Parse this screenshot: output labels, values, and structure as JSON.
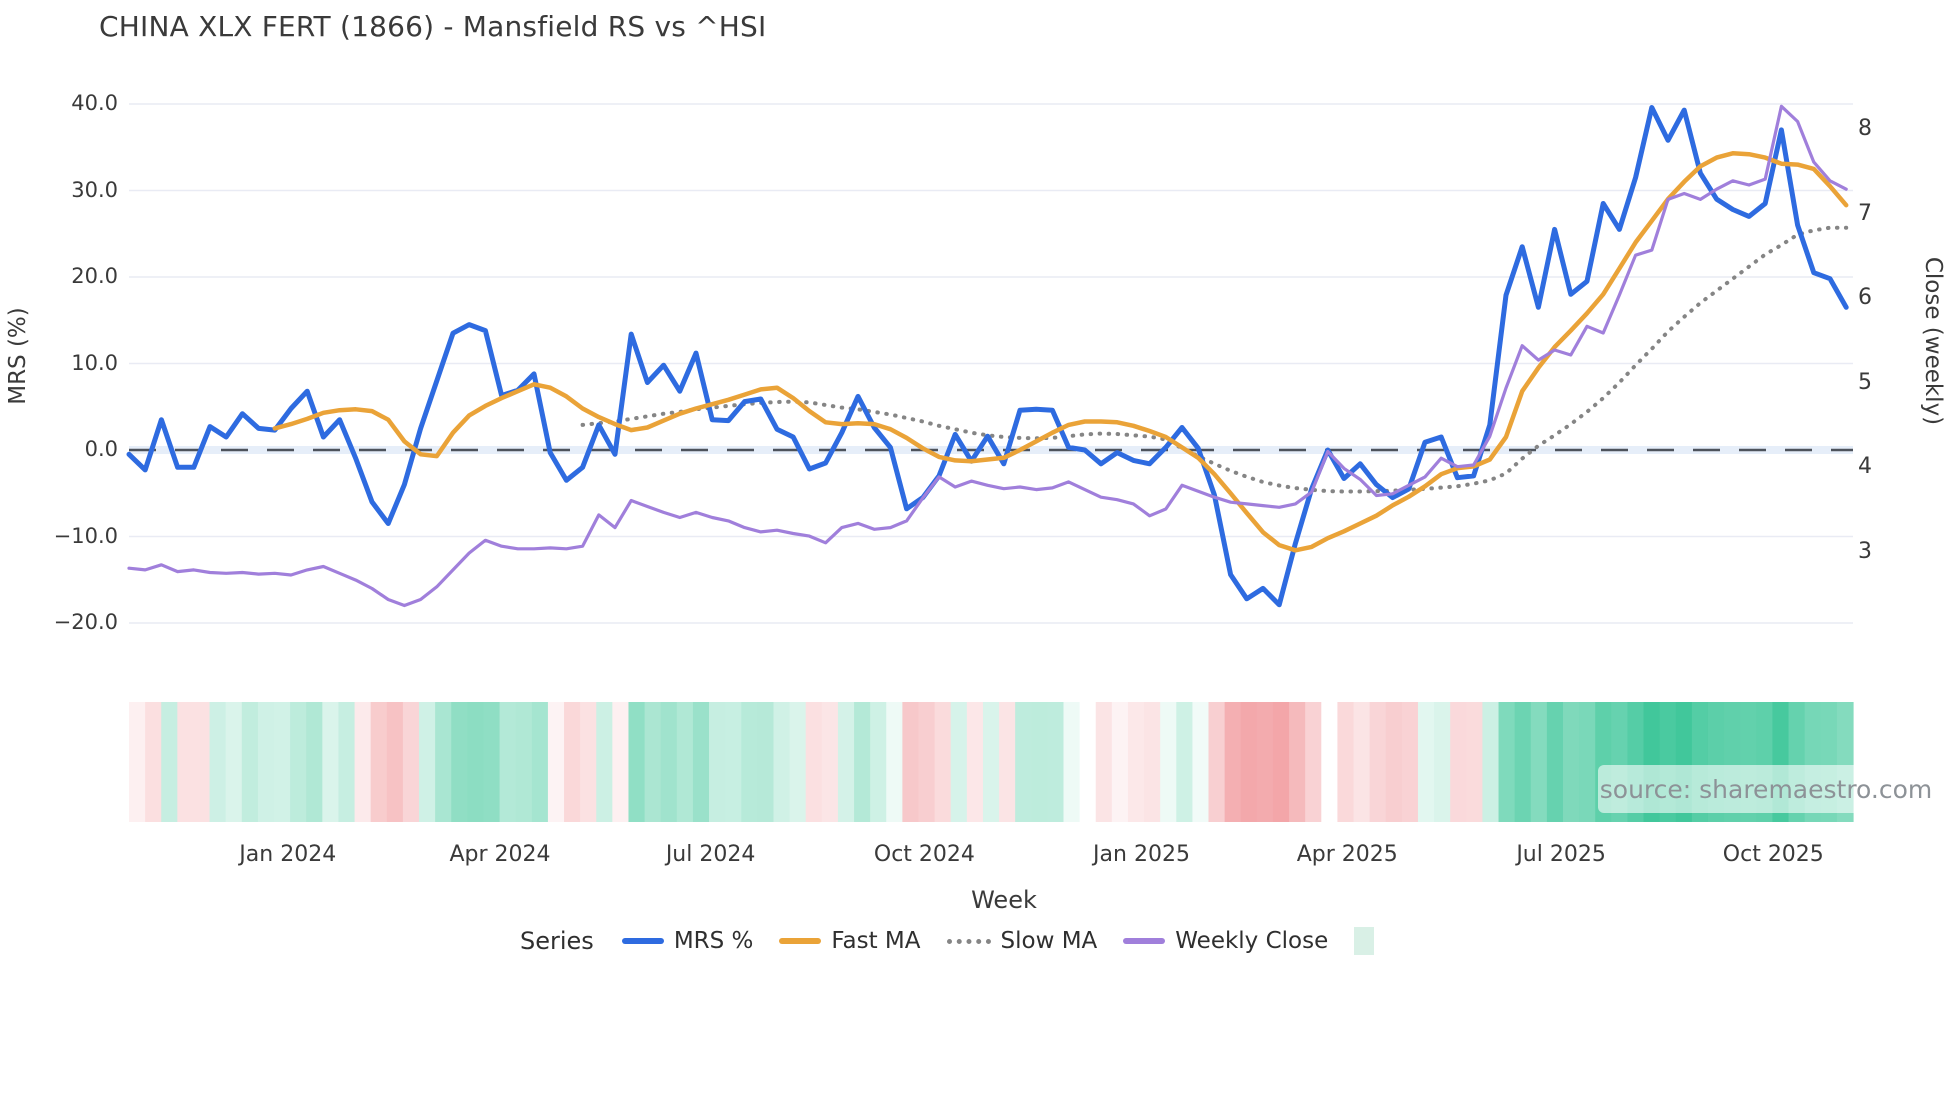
{
  "title": "CHINA XLX FERT (1866) - Mansfield RS vs ^HSI",
  "watermark": "source: sharemaestro.com",
  "axes": {
    "x_label": "Week",
    "y_left_label": "MRS (%)",
    "y_right_label": "Close (weekly)",
    "x_ticks": [
      {
        "label": "Jan 2024",
        "week": 9.8
      },
      {
        "label": "Apr 2024",
        "week": 22.9
      },
      {
        "label": "Jul 2024",
        "week": 35.9
      },
      {
        "label": "Oct 2024",
        "week": 49.1
      },
      {
        "label": "Jan 2025",
        "week": 62.5
      },
      {
        "label": "Apr 2025",
        "week": 75.2
      },
      {
        "label": "Jul 2025",
        "week": 88.4
      },
      {
        "label": "Oct 2025",
        "week": 101.5
      }
    ],
    "y_left_ticks": [
      {
        "label": "40.0",
        "value": 40
      },
      {
        "label": "30.0",
        "value": 30
      },
      {
        "label": "20.0",
        "value": 20
      },
      {
        "label": "10.0",
        "value": 10
      },
      {
        "label": "0.0",
        "value": 0
      },
      {
        "label": "−10.0",
        "value": -10
      },
      {
        "label": "−20.0",
        "value": -20
      }
    ],
    "y_right_ticks": [
      {
        "label": "8",
        "value": 8
      },
      {
        "label": "7",
        "value": 7
      },
      {
        "label": "6",
        "value": 6
      },
      {
        "label": "5",
        "value": 5
      },
      {
        "label": "4",
        "value": 4
      },
      {
        "label": "3",
        "value": 3
      }
    ]
  },
  "legend": {
    "title": "Series",
    "items": [
      {
        "label": "MRS %",
        "style": "solid",
        "color": "#2e6be0"
      },
      {
        "label": "Fast MA",
        "style": "solid",
        "color": "#eaa338"
      },
      {
        "label": "Slow MA",
        "style": "dotted",
        "color": "#858585"
      },
      {
        "label": "Weekly Close",
        "style": "solid",
        "color": "#a07fdb"
      },
      {
        "label": "",
        "style": "square",
        "color": "#d9f0e6"
      }
    ]
  },
  "colors": {
    "mrs_line": "#2e6be0",
    "fast_ma_line": "#eaa338",
    "slow_ma_line": "#858585",
    "weekly_close_line": "#a07fdb",
    "zero_dash": "#4d535c",
    "zero_band": "#dde8f7",
    "gridline": "#e9ebf4",
    "heat_green": "#10b981",
    "heat_red": "#e8595f",
    "legend_heat_swatch": "#d9f0e6"
  },
  "chart_data": {
    "type": "line",
    "title": "CHINA XLX FERT (1866) - Mansfield RS vs ^HSI",
    "xlabel": "Week",
    "ylabel_left": "MRS (%)",
    "ylabel_right": "Close (weekly)",
    "x_unit": "week_index",
    "n_points": 107,
    "x_range_weeks": [
      "late Oct 2023",
      "early Nov 2025"
    ],
    "y_left_range": [
      -24,
      42
    ],
    "y_right_range": [
      2.2,
      8.5
    ],
    "grid": "horizontal-only",
    "legend_position": "bottom",
    "zero_reference_line": 0,
    "series": [
      {
        "name": "MRS %",
        "axis": "left",
        "style": "solid",
        "color": "#2e6be0",
        "values": [
          -0.5,
          -2.3,
          3.5,
          -2,
          -2,
          2.7,
          1.5,
          4.2,
          2.5,
          2.3,
          4.8,
          6.8,
          1.5,
          3.5,
          -1,
          -6,
          -8.5,
          -4,
          2.5,
          8,
          13.5,
          14.5,
          13.8,
          6.3,
          6.9,
          8.8,
          -0.3,
          -3.5,
          -2,
          2.9,
          -0.5,
          13.4,
          7.8,
          9.8,
          6.8,
          11.2,
          3.5,
          3.4,
          5.6,
          5.9,
          2.4,
          1.5,
          -2.2,
          -1.5,
          2,
          6.2,
          2.6,
          0.3,
          -6.8,
          -5.5,
          -3,
          1.8,
          -1.3,
          1.6,
          -1.6,
          4.6,
          4.7,
          4.6,
          0.3,
          0,
          -1.6,
          -0.3,
          -1.2,
          -1.6,
          0.3,
          2.6,
          0.2,
          -5.2,
          -14.4,
          -17.2,
          -16,
          -17.9,
          -10.8,
          -4.5,
          0,
          -3.3,
          -1.6,
          -4,
          -5.5,
          -4.5,
          0.9,
          1.5,
          -3.2,
          -3,
          2.9,
          17.9,
          23.5,
          16.5,
          25.5,
          18,
          19.5,
          28.5,
          25.5,
          31.5,
          39.6,
          35.8,
          39.3,
          32,
          29,
          27.8,
          27,
          28.5,
          37,
          26,
          20.5,
          19.8,
          16.5
        ]
      },
      {
        "name": "Fast MA",
        "axis": "left",
        "style": "solid",
        "color": "#eaa338",
        "values": [
          null,
          null,
          null,
          null,
          null,
          null,
          null,
          null,
          null,
          2.5,
          3,
          3.6,
          4.3,
          4.6,
          4.7,
          4.5,
          3.5,
          1,
          -0.5,
          -0.7,
          2,
          4,
          5.1,
          6,
          6.8,
          7.6,
          7.2,
          6.2,
          4.8,
          3.8,
          3,
          2.3,
          2.6,
          3.4,
          4.2,
          4.8,
          5.3,
          5.8,
          6.4,
          7,
          7.2,
          6,
          4.5,
          3.2,
          3,
          3.1,
          3,
          2.4,
          1.4,
          0.2,
          -0.8,
          -1.2,
          -1.3,
          -1.1,
          -0.9,
          0,
          1,
          2,
          2.9,
          3.3,
          3.3,
          3.2,
          2.8,
          2.2,
          1.5,
          0.3,
          -0.9,
          -2.8,
          -5,
          -7.3,
          -9.5,
          -11,
          -11.6,
          -11.2,
          -10.2,
          -9.4,
          -8.5,
          -7.6,
          -6.4,
          -5.4,
          -4.2,
          -2.8,
          -2.1,
          -1.9,
          -1.1,
          1.5,
          6.8,
          9.5,
          11.9,
          13.8,
          15.8,
          18,
          21,
          24,
          26.5,
          29,
          31,
          32.8,
          33.8,
          34.3,
          34.2,
          33.8,
          33.1,
          33,
          32.5,
          30.5,
          28.3
        ]
      },
      {
        "name": "Slow MA",
        "axis": "left",
        "style": "dotted",
        "color": "#858585",
        "values": [
          null,
          null,
          null,
          null,
          null,
          null,
          null,
          null,
          null,
          null,
          null,
          null,
          null,
          null,
          null,
          null,
          null,
          null,
          null,
          null,
          null,
          null,
          null,
          null,
          null,
          null,
          null,
          null,
          2.9,
          3.1,
          3.3,
          3.6,
          3.9,
          4.2,
          4.4,
          4.7,
          4.9,
          5.1,
          5.3,
          5.45,
          5.55,
          5.6,
          5.5,
          5.2,
          4.9,
          4.7,
          4.4,
          4.1,
          3.7,
          3.3,
          2.8,
          2.4,
          2,
          1.7,
          1.5,
          1.4,
          1.35,
          1.4,
          1.6,
          1.8,
          1.9,
          1.85,
          1.7,
          1.55,
          1.2,
          0.2,
          -0.7,
          -1.6,
          -2.4,
          -3.1,
          -3.7,
          -4.1,
          -4.4,
          -4.6,
          -4.75,
          -4.8,
          -4.8,
          -4.75,
          -4.7,
          -4.6,
          -4.5,
          -4.35,
          -4.2,
          -3.9,
          -3.5,
          -2.7,
          -1,
          0.5,
          1.7,
          3,
          4.4,
          6,
          7.8,
          9.8,
          11.7,
          13.7,
          15.4,
          17,
          18.4,
          19.8,
          21.2,
          22.6,
          23.7,
          24.9,
          25.4,
          25.7,
          25.7
        ]
      },
      {
        "name": "Weekly Close",
        "axis": "right",
        "style": "solid",
        "color": "#a07fdb",
        "values": [
          2.82,
          2.8,
          2.86,
          2.78,
          2.8,
          2.77,
          2.76,
          2.77,
          2.75,
          2.76,
          2.74,
          2.8,
          2.84,
          2.76,
          2.68,
          2.58,
          2.45,
          2.38,
          2.45,
          2.6,
          2.8,
          3,
          3.15,
          3.08,
          3.05,
          3.05,
          3.06,
          3.05,
          3.08,
          3.45,
          3.3,
          3.62,
          3.55,
          3.48,
          3.42,
          3.48,
          3.42,
          3.38,
          3.3,
          3.25,
          3.27,
          3.23,
          3.2,
          3.12,
          3.3,
          3.35,
          3.28,
          3.3,
          3.38,
          3.65,
          3.9,
          3.78,
          3.85,
          3.8,
          3.76,
          3.78,
          3.75,
          3.77,
          3.84,
          3.75,
          3.66,
          3.63,
          3.58,
          3.44,
          3.52,
          3.8,
          3.73,
          3.66,
          3.6,
          3.58,
          3.56,
          3.54,
          3.58,
          3.72,
          4.2,
          4,
          3.87,
          3.68,
          3.7,
          3.8,
          3.9,
          4.12,
          4.02,
          4.04,
          4.38,
          4.95,
          5.45,
          5.28,
          5.4,
          5.34,
          5.68,
          5.6,
          6.05,
          6.52,
          6.58,
          7.18,
          7.25,
          7.18,
          7.3,
          7.4,
          7.35,
          7.42,
          8.28,
          8.1,
          7.62,
          7.4,
          7.3
        ]
      },
      {
        "name": "Relative strength heatmap strip",
        "axis": "none",
        "style": "heatmap",
        "note": "weekly color strip below plot: green = positive MRS, red = negative MRS, intensity scales with magnitude; derived from MRS % values"
      }
    ]
  }
}
